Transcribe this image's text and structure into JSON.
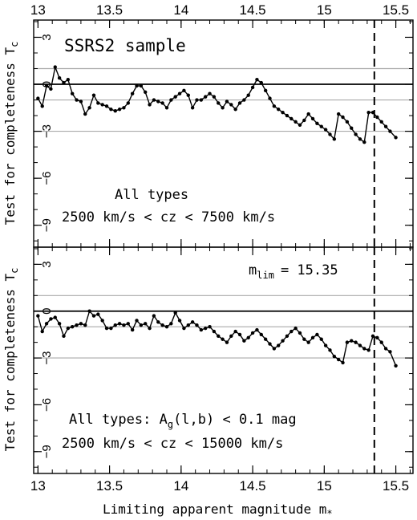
{
  "chart_data": [
    {
      "type": "line",
      "title": "SSRS2 sample",
      "ylabel_main": "Test for completeness",
      "ylabel_sym": "T",
      "ylabel_sub": "c",
      "xlim": [
        12.97,
        15.62
      ],
      "ylim": [
        -10.4,
        4.1
      ],
      "yticks": [
        "3",
        "0",
        "-3",
        "-6",
        "-9"
      ],
      "xticks": [
        "13",
        "13.5",
        "14",
        "14.5",
        "15",
        "15.5"
      ],
      "reference_lines": [
        1,
        -1,
        -3
      ],
      "zero_line": 0,
      "vline": 15.35,
      "annotation_1": "All types",
      "annotation_2": "2500 km/s < cz < 7500 km/s",
      "series": [
        {
          "x": [
            13.0,
            13.03,
            13.06,
            13.09,
            13.12,
            13.15,
            13.18,
            13.21,
            13.24,
            13.27,
            13.3,
            13.33,
            13.36,
            13.39,
            13.42,
            13.45,
            13.48,
            13.51,
            13.54,
            13.57,
            13.6,
            13.63,
            13.66,
            13.69,
            13.72,
            13.75,
            13.78,
            13.81,
            13.84,
            13.87,
            13.9,
            13.93,
            13.96,
            13.99,
            14.02,
            14.05,
            14.08,
            14.11,
            14.14,
            14.17,
            14.2,
            14.23,
            14.26,
            14.29,
            14.32,
            14.35,
            14.38,
            14.41,
            14.44,
            14.47,
            14.5,
            14.53,
            14.56,
            14.59,
            14.62,
            14.65,
            14.68,
            14.71,
            14.74,
            14.77,
            14.8,
            14.83,
            14.86,
            14.89,
            14.92,
            14.95,
            14.98,
            15.01,
            15.04,
            15.07,
            15.1,
            15.13,
            15.16,
            15.19,
            15.22,
            15.25,
            15.28,
            15.31,
            15.34,
            15.37,
            15.4,
            15.43,
            15.46,
            15.5
          ],
          "y": [
            -0.9,
            -1.4,
            -0.1,
            -0.3,
            1.1,
            0.4,
            0.1,
            0.3,
            -0.6,
            -1.0,
            -1.1,
            -1.9,
            -1.5,
            -0.7,
            -1.2,
            -1.3,
            -1.4,
            -1.6,
            -1.7,
            -1.6,
            -1.5,
            -1.2,
            -0.6,
            -0.1,
            -0.1,
            -0.5,
            -1.3,
            -1.0,
            -1.1,
            -1.2,
            -1.5,
            -1.0,
            -0.8,
            -0.6,
            -0.4,
            -0.7,
            -1.5,
            -1.0,
            -1.0,
            -0.8,
            -0.6,
            -0.8,
            -1.2,
            -1.5,
            -1.1,
            -1.3,
            -1.6,
            -1.2,
            -1.0,
            -0.7,
            -0.2,
            0.3,
            0.1,
            -0.4,
            -0.9,
            -1.4,
            -1.6,
            -1.8,
            -2.0,
            -2.2,
            -2.4,
            -2.6,
            -2.3,
            -1.9,
            -2.2,
            -2.5,
            -2.7,
            -2.9,
            -3.2,
            -3.5,
            -1.9,
            -2.1,
            -2.4,
            -2.8,
            -3.2,
            -3.5,
            -3.7,
            -1.8,
            -1.8,
            -2.1,
            -2.4,
            -2.7,
            -3.0,
            -3.4
          ]
        }
      ]
    },
    {
      "type": "line",
      "ylabel_main": "Test for completeness",
      "ylabel_sym": "T",
      "ylabel_sub": "c",
      "xlabel": "Limiting apparent magnitude",
      "xlabel_sym": "m",
      "xlabel_sub": "*",
      "xlim": [
        12.97,
        15.62
      ],
      "ylim": [
        -10.4,
        4.1
      ],
      "yticks": [
        "3",
        "0",
        "-3",
        "-6",
        "-9"
      ],
      "xticks": [
        "13",
        "13.5",
        "14",
        "14.5",
        "15",
        "15.5"
      ],
      "reference_lines": [
        1,
        -1,
        -3
      ],
      "zero_line": 0,
      "vline": 15.35,
      "mlim_sym": "m",
      "mlim_sub": "lim",
      "mlim_value": "= 15.35",
      "annotation_1_pre": "All types:  A",
      "annotation_1_sub": "g",
      "annotation_1_post": "(l,b) < 0.1 mag",
      "annotation_2": "2500 km/s < cz < 15000 km/s",
      "series": [
        {
          "x": [
            13.0,
            13.03,
            13.06,
            13.09,
            13.12,
            13.15,
            13.18,
            13.21,
            13.24,
            13.27,
            13.3,
            13.33,
            13.36,
            13.39,
            13.42,
            13.45,
            13.48,
            13.51,
            13.54,
            13.57,
            13.6,
            13.63,
            13.66,
            13.69,
            13.72,
            13.75,
            13.78,
            13.81,
            13.84,
            13.87,
            13.9,
            13.93,
            13.96,
            13.99,
            14.02,
            14.05,
            14.08,
            14.11,
            14.14,
            14.17,
            14.2,
            14.23,
            14.26,
            14.29,
            14.32,
            14.35,
            14.38,
            14.41,
            14.44,
            14.47,
            14.5,
            14.53,
            14.56,
            14.59,
            14.62,
            14.65,
            14.68,
            14.71,
            14.74,
            14.77,
            14.8,
            14.83,
            14.86,
            14.89,
            14.92,
            14.95,
            14.98,
            15.01,
            15.04,
            15.07,
            15.1,
            15.13,
            15.16,
            15.19,
            15.22,
            15.25,
            15.28,
            15.31,
            15.34,
            15.37,
            15.4,
            15.43,
            15.46,
            15.5
          ],
          "y": [
            -0.3,
            -1.3,
            -0.8,
            -0.5,
            -0.4,
            -0.8,
            -1.6,
            -1.1,
            -1.0,
            -0.9,
            -0.8,
            -0.9,
            0.0,
            -0.3,
            -0.2,
            -0.6,
            -1.1,
            -1.1,
            -0.9,
            -0.8,
            -0.9,
            -0.8,
            -1.2,
            -0.6,
            -0.9,
            -0.8,
            -1.1,
            -0.3,
            -0.7,
            -0.9,
            -1.0,
            -0.8,
            -0.1,
            -0.6,
            -1.1,
            -0.9,
            -0.7,
            -0.9,
            -1.2,
            -1.1,
            -1.0,
            -1.3,
            -1.6,
            -1.8,
            -2.0,
            -1.6,
            -1.3,
            -1.5,
            -1.9,
            -1.7,
            -1.4,
            -1.2,
            -1.5,
            -1.8,
            -2.1,
            -2.4,
            -2.2,
            -1.9,
            -1.6,
            -1.3,
            -1.1,
            -1.4,
            -1.8,
            -2.0,
            -1.7,
            -1.5,
            -1.8,
            -2.2,
            -2.5,
            -2.9,
            -3.1,
            -3.3,
            -2.0,
            -1.9,
            -2.0,
            -2.2,
            -2.4,
            -2.5,
            -1.6,
            -1.7,
            -2.0,
            -2.4,
            -2.6,
            -3.5
          ]
        }
      ]
    }
  ]
}
